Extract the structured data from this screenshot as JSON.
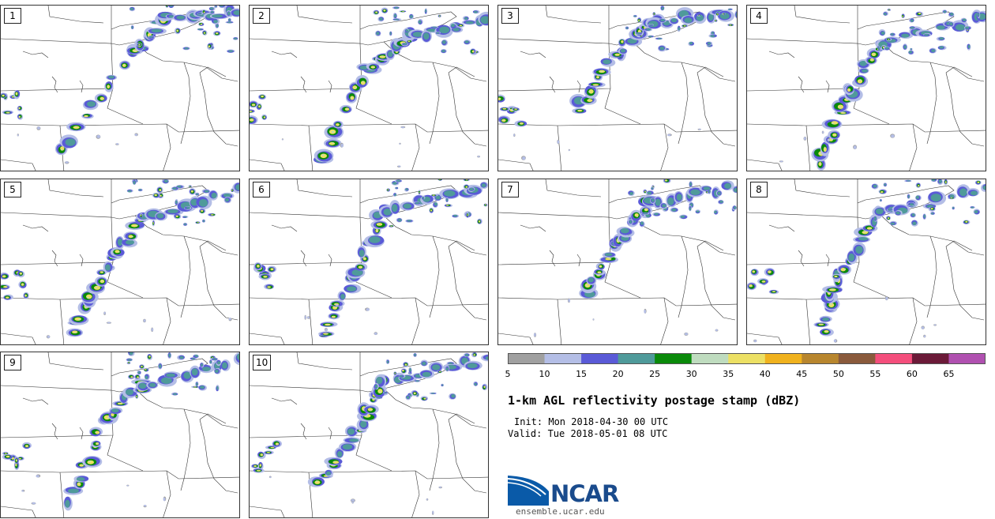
{
  "panels": [
    {
      "label": "1"
    },
    {
      "label": "2"
    },
    {
      "label": "3"
    },
    {
      "label": "4"
    },
    {
      "label": "5"
    },
    {
      "label": "6"
    },
    {
      "label": "7"
    },
    {
      "label": "8"
    },
    {
      "label": "9"
    },
    {
      "label": "10"
    }
  ],
  "colorbar": {
    "colors": [
      "#a0a0a0",
      "#b4bee6",
      "#5a5ad7",
      "#4f9a9a",
      "#0a8a0a",
      "#bfdcbf",
      "#ece064",
      "#f0b21e",
      "#b8862e",
      "#8a5a3c",
      "#f44e7c",
      "#6b1a38",
      "#b050b0"
    ],
    "labels": [
      "5",
      "10",
      "15",
      "20",
      "25",
      "30",
      "35",
      "40",
      "45",
      "50",
      "55",
      "60",
      "65"
    ]
  },
  "title": "1-km AGL reflectivity postage stamp (dBZ)",
  "init": "Init: Mon 2018-04-30 00 UTC",
  "valid": "Valid: Tue 2018-05-01 08 UTC",
  "logo": {
    "text": "NCAR"
  },
  "site": "ensemble.ucar.edu"
}
